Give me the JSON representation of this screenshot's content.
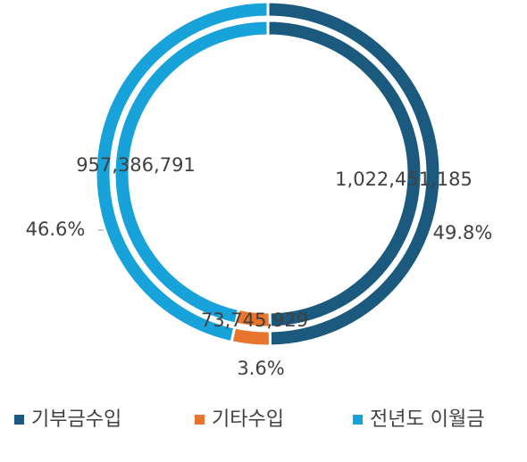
{
  "chart_data": {
    "type": "donut",
    "categories": [
      "기부금수입",
      "기타수입",
      "전년도 이월금"
    ],
    "colors": [
      "#1b5a7e",
      "#e8742d",
      "#17a2da"
    ],
    "series": [
      {
        "values": [
          1022451185,
          73745929,
          957386791
        ],
        "value_labels": [
          "1,022,451,185",
          "73,745,929",
          "957,386,791"
        ]
      },
      {
        "values": [
          49.8,
          3.6,
          46.6
        ],
        "value_labels": [
          "49.8%",
          "3.6%",
          "46.6%"
        ]
      }
    ],
    "legend": "bottom"
  }
}
